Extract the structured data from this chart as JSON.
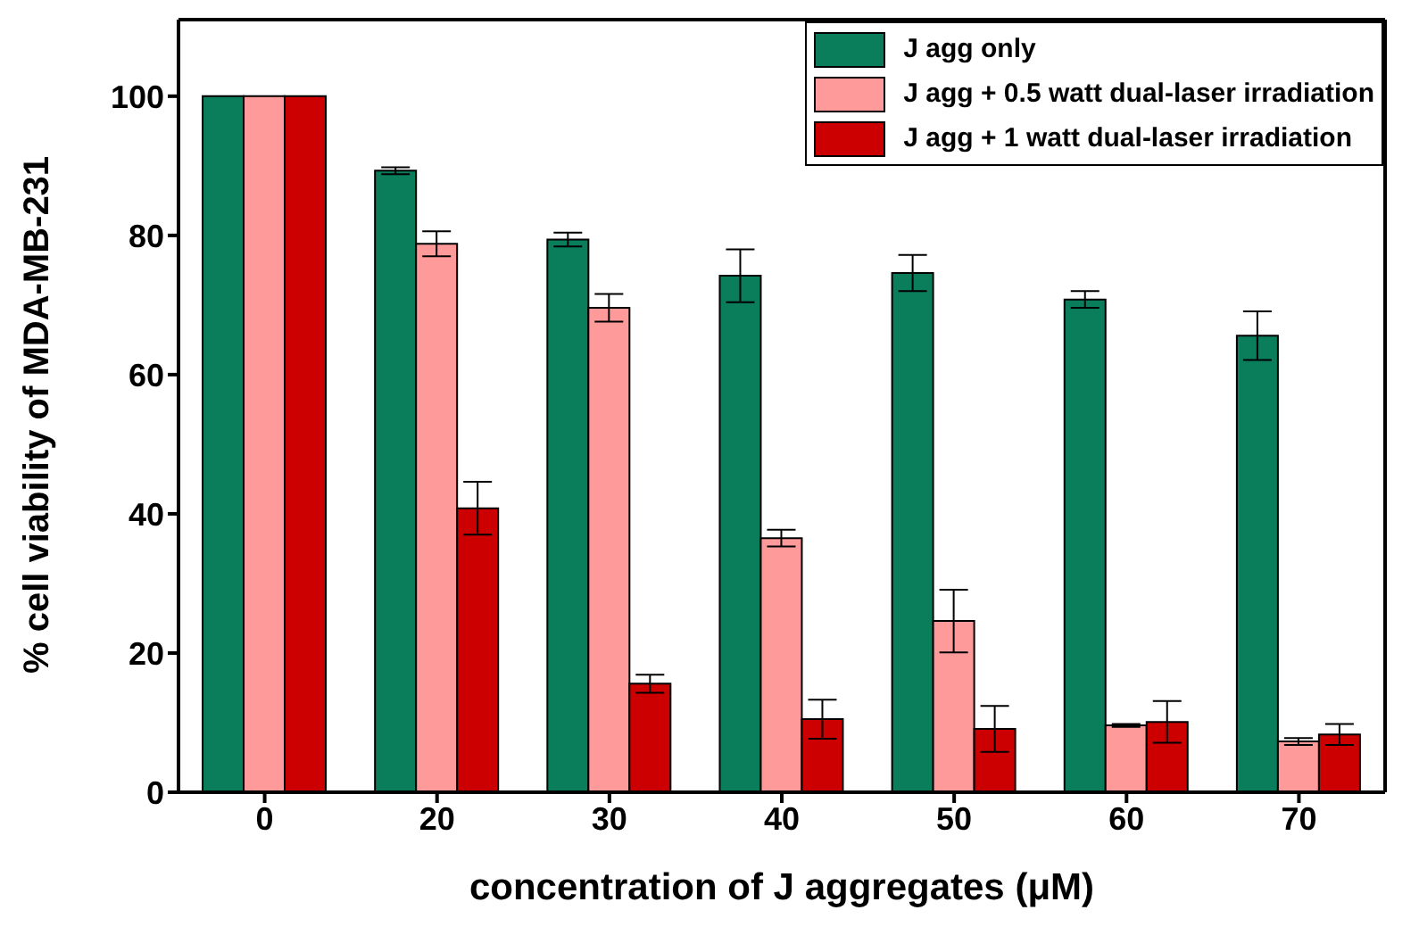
{
  "chart_data": {
    "type": "bar",
    "xlabel": "concentration of J aggregates (μM)",
    "ylabel": "% cell viability of MDA-MB-231",
    "categories": [
      "0",
      "20",
      "30",
      "40",
      "50",
      "60",
      "70"
    ],
    "series": [
      {
        "name": "J agg only",
        "color": "#0a7d5a",
        "values": [
          100,
          89.3,
          79.4,
          74.2,
          74.6,
          70.8,
          65.6
        ],
        "errors": [
          null,
          0.5,
          1,
          3.8,
          2.6,
          1.2,
          3.5
        ]
      },
      {
        "name": "J agg + 0.5 watt dual-laser irradiation",
        "color": "#ff9a9a",
        "values": [
          100,
          78.8,
          69.6,
          36.5,
          24.6,
          9.6,
          7.3
        ],
        "errors": [
          null,
          1.8,
          2,
          1.2,
          4.5,
          0.2,
          0.5
        ]
      },
      {
        "name": "J agg + 1 watt dual-laser irradiation",
        "color": "#cc0000",
        "values": [
          100,
          40.8,
          15.6,
          10.5,
          9.1,
          10.1,
          8.3
        ],
        "errors": [
          null,
          3.8,
          1.3,
          2.8,
          3.3,
          3,
          1.5
        ]
      }
    ],
    "ylim": [
      0,
      111
    ],
    "yticks": [
      0,
      20,
      40,
      60,
      80,
      100
    ],
    "grid": false,
    "legend": "top right"
  }
}
